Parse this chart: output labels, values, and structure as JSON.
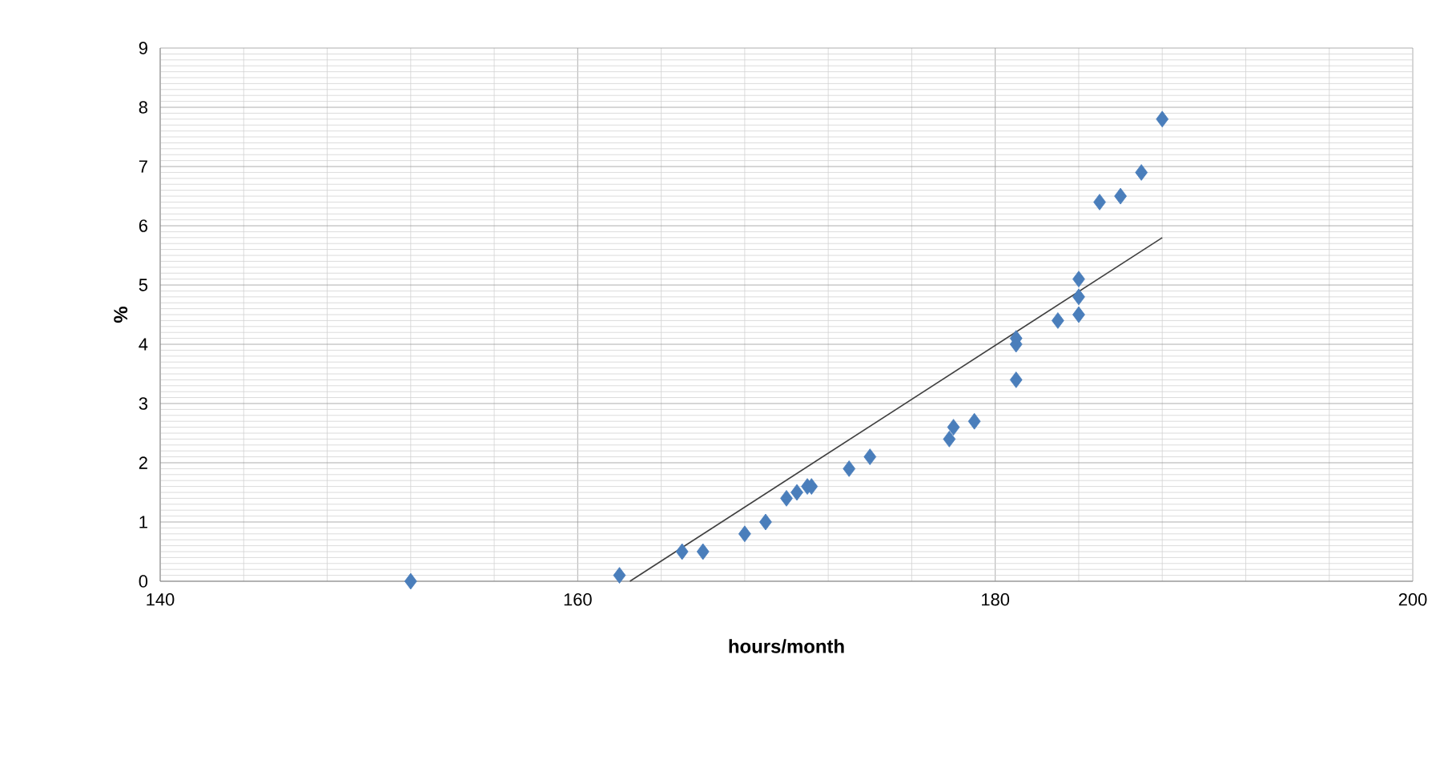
{
  "chart_data": {
    "type": "scatter",
    "xlabel": "hours/month",
    "ylabel": "%",
    "xlim": [
      140,
      200
    ],
    "ylim": [
      0,
      9
    ],
    "xticks": [
      140,
      160,
      180,
      200
    ],
    "yticks": [
      0,
      1,
      2,
      3,
      4,
      5,
      6,
      7,
      8,
      9
    ],
    "grid": true,
    "series": [
      {
        "marker": "diamond",
        "color": "#4a7ebb",
        "x": [
          152,
          162,
          165,
          166,
          168,
          169,
          170,
          170.5,
          171,
          171.2,
          173,
          174,
          177.8,
          178,
          179,
          181,
          181,
          181,
          183,
          184,
          184,
          184,
          185,
          186,
          187,
          188
        ],
        "values": [
          0,
          0.1,
          0.5,
          0.5,
          0.8,
          1.0,
          1.4,
          1.5,
          1.6,
          1.6,
          1.9,
          2.1,
          2.4,
          2.6,
          2.7,
          3.4,
          4.0,
          4.1,
          4.4,
          4.5,
          4.8,
          5.1,
          6.4,
          6.5,
          6.9,
          7.8
        ]
      },
      {
        "type": "line",
        "marker": "none",
        "color": "#404040",
        "x": [
          162.5,
          188
        ],
        "values": [
          0,
          5.8
        ]
      }
    ]
  }
}
